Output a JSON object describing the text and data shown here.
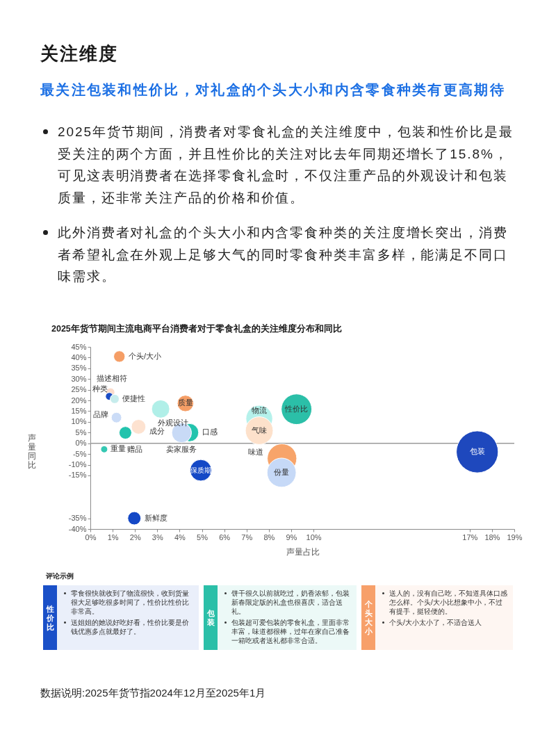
{
  "chart_data": [
    {
      "type": "other",
      "title": "关注维度",
      "subtitle": "最关注包装和性价比，对礼盒的个头大小和内含零食种类有更高期待",
      "annotations": [
        "2025年货节期间，消费者对零食礼盒的关注维度中，包装和性价比是最受关注的两个方面，并且性价比的关注对比去年同期还增长了15.8%，可见这表明消费者在选择零食礼盒时，不仅注重产品的外观设计和包装质量，还非常关注产品的价格和价值。",
        "此外消费者对礼盒的个头大小和内含零食种类的关注度增长突出，消费者希望礼盒在外观上足够大气的同时零食种类丰富多样，能满足不同口味需求。"
      ]
    },
    {
      "type": "bubble",
      "title": "2025年货节期间主流电商平台消费者对于零食礼盒的关注维度分布和同比",
      "xlabel": "声量占比",
      "ylabel": "声量同比",
      "grid": false,
      "xlim": [
        0,
        19
      ],
      "xticks": [
        {
          "value": 0,
          "label": "0%"
        },
        {
          "value": 1,
          "label": "1%"
        },
        {
          "value": 2,
          "label": "2%"
        },
        {
          "value": 3,
          "label": "3%"
        },
        {
          "value": 4,
          "label": "4%"
        },
        {
          "value": 5,
          "label": "5%"
        },
        {
          "value": 6,
          "label": "6%"
        },
        {
          "value": 7,
          "label": "7%"
        },
        {
          "value": 8,
          "label": "8%"
        },
        {
          "value": 9,
          "label": "9%"
        },
        {
          "value": 10,
          "label": "10%"
        },
        {
          "value": 17,
          "label": "17%"
        },
        {
          "value": 18,
          "label": "18%"
        },
        {
          "value": 19,
          "label": "19%"
        }
      ],
      "ylim": [
        -40,
        45
      ],
      "yticks": [
        {
          "value": -40,
          "label": "-40%"
        },
        {
          "value": -35,
          "label": "-35%"
        },
        {
          "value": -15,
          "label": "-15%"
        },
        {
          "value": -10,
          "label": "-10%"
        },
        {
          "value": -5,
          "label": "-5%"
        },
        {
          "value": 0,
          "label": "0%"
        },
        {
          "value": 5,
          "label": "5%"
        },
        {
          "value": 10,
          "label": "10%"
        },
        {
          "value": 15,
          "label": "15%"
        },
        {
          "value": 20,
          "label": "20%"
        },
        {
          "value": 25,
          "label": "25%"
        },
        {
          "value": 30,
          "label": "30%"
        },
        {
          "value": 35,
          "label": "35%"
        },
        {
          "value": 40,
          "label": "40%"
        },
        {
          "value": 45,
          "label": "45%"
        }
      ],
      "ref_lines": [
        {
          "axis": "y",
          "value": 0,
          "color": "#9a9a9a"
        }
      ],
      "series": [
        {
          "name": "个头/大小",
          "color": "#f59e66",
          "x": [
            1.3
          ],
          "values": [
            40.5
          ],
          "sizes": [
            0.074
          ]
        },
        {
          "name": "描述相符",
          "color": "#fbdccc",
          "x": [
            0.9
          ],
          "values": [
            23.8
          ],
          "sizes": [
            0.043
          ]
        },
        {
          "name": "种类",
          "color": "#1a4cc4",
          "x": [
            0.85
          ],
          "values": [
            21.9
          ],
          "sizes": [
            0.033
          ]
        },
        {
          "name": "便捷性",
          "color": "#c6ecec",
          "x": [
            1.09
          ],
          "values": [
            20.7
          ],
          "sizes": [
            0.046
          ]
        },
        {
          "name": "品牌",
          "color": "#cbdcf7",
          "x": [
            1.17
          ],
          "values": [
            12.0
          ],
          "sizes": [
            0.061
          ]
        },
        {
          "name": "外观设计",
          "color": "#b0efe8",
          "x": [
            3.15
          ],
          "values": [
            16.0
          ],
          "sizes": [
            0.185
          ]
        },
        {
          "name": "成分",
          "color": "#fde2d0",
          "x": [
            2.16
          ],
          "values": [
            7.7
          ],
          "sizes": [
            0.12
          ]
        },
        {
          "name": "质量",
          "color": "#f59e66",
          "x": [
            4.26
          ],
          "values": [
            18.6
          ],
          "sizes": [
            0.151
          ]
        },
        {
          "name": "口感",
          "color": "#22c3ad",
          "x": [
            4.45
          ],
          "values": [
            5.0
          ],
          "sizes": [
            0.185
          ]
        },
        {
          "name": "卖家服务",
          "color": "#c8daf6",
          "x": [
            4.09
          ],
          "values": [
            4.9
          ],
          "sizes": [
            0.222
          ]
        },
        {
          "name": "赠品",
          "color": "#22c3ad",
          "x": [
            1.57
          ],
          "values": [
            4.9
          ],
          "sizes": [
            0.089
          ]
        },
        {
          "name": "重量",
          "color": "#35c8b3",
          "x": [
            0.62
          ],
          "values": [
            -2.8
          ],
          "sizes": [
            0.027
          ]
        },
        {
          "name": "保质期",
          "color": "#1448c6",
          "x": [
            4.95
          ],
          "values": [
            -12.6
          ],
          "sizes": [
            0.263
          ]
        },
        {
          "name": "新鲜度",
          "color": "#1448c6",
          "x": [
            1.97
          ],
          "values": [
            -35
          ],
          "sizes": [
            0.099
          ]
        },
        {
          "name": "物流",
          "color": "#b5f1eb",
          "x": [
            7.57
          ],
          "values": [
            11.5
          ],
          "sizes": [
            0.405
          ]
        },
        {
          "name": "气味",
          "color": "#fde1cb",
          "x": [
            7.57
          ],
          "values": [
            5.9
          ],
          "sizes": [
            0.437
          ]
        },
        {
          "name": "性价比",
          "color": "#2bbfa8",
          "x": [
            9.24
          ],
          "values": [
            15.9
          ],
          "sizes": [
            0.529
          ]
        },
        {
          "name": "味道",
          "color": "#f7a46a",
          "x": [
            8.59
          ],
          "values": [
            -7.1
          ],
          "sizes": [
            0.493
          ]
        },
        {
          "name": "份量",
          "color": "#c6d9f7",
          "x": [
            8.57
          ],
          "values": [
            -13.7
          ],
          "sizes": [
            0.482
          ]
        },
        {
          "name": "包装",
          "color": "#1e48bd",
          "x": [
            17.34
          ],
          "values": [
            -4.0
          ],
          "sizes": [
            1
          ]
        }
      ]
    },
    {
      "type": "other",
      "title": "评论示例",
      "categories": [
        "性价比",
        "包装",
        "个头大小"
      ],
      "colors": [
        "#1a50c8",
        "#2bbfa8",
        "#f7a06a"
      ],
      "annotations": [
        "零食很快就收到了物流很快，收到货量很大足够吃很多时间了，性价比性价比非常高。",
        "送姐姐的她说好吃好看，性价比要是价钱优惠多点就最好了。",
        "饼干很久以前就吃过，奶香浓郁，包装新春限定版的礼盒也很喜庆，适合送礼。",
        "包装超可爱包装的零食礼盒，里面非常丰富，味道都很棒，过年在家自己准备一箱吃或者送礼都非常合适。",
        "送人的，没有自己吃，不知道具体口感怎么样。个头/大小比想象中小，不过有提手，挺轻便的。",
        "个头/大小太小了，不适合送人"
      ]
    },
    {
      "type": "other",
      "annotations": [
        "数据说明:2025年货节指2024年12月至2025年1月"
      ]
    }
  ]
}
